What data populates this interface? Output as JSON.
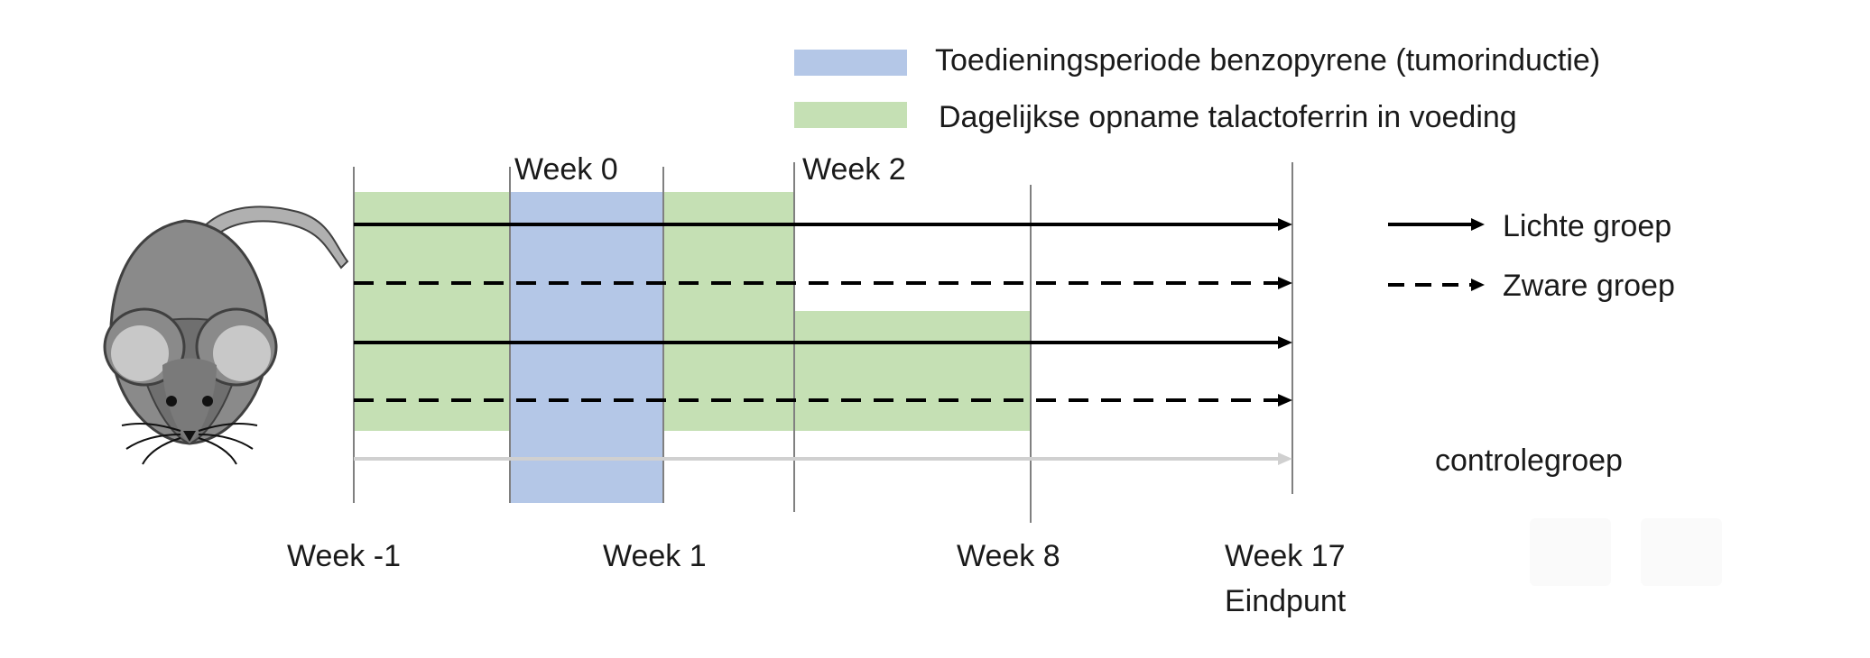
{
  "legend": {
    "benzopyrene": {
      "label": "Toedieningsperiode benzopyrene (tumorinductie)",
      "color": "#b4c7e7"
    },
    "talactoferrin": {
      "label": "Dagelijkse opname talactoferrin in voeding",
      "color": "#c5e0b4"
    }
  },
  "top_week_labels": [
    "Week 0",
    "Week 2"
  ],
  "bottom_week_labels": [
    "Week -1",
    "Week 1",
    "Week 8",
    "Week 17"
  ],
  "endpoint_label": "Eindpunt",
  "group_legend": {
    "light": "Lichte groep",
    "heavy": "Zware groep",
    "control": "controlegroep"
  },
  "colors": {
    "arrow": "#000000",
    "control_arrow": "#d0d0d0",
    "mouse_body": "#8a8a8a",
    "mouse_dark": "#4d4d4d",
    "ear_inner": "#c8c8c8"
  }
}
